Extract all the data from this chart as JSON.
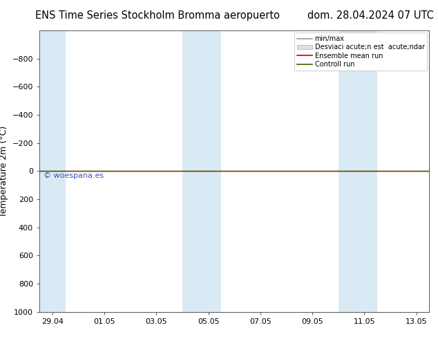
{
  "title_left": "ENS Time Series Stockholm Bromma aeropuerto",
  "title_right": "dom. 28.04.2024 07 UTC",
  "ylabel": "Temperature 2m (°C)",
  "ylim_top": -1000,
  "ylim_bottom": 1000,
  "yticks": [
    -800,
    -600,
    -400,
    -200,
    0,
    200,
    400,
    600,
    800,
    1000
  ],
  "xlim_start": 0,
  "xlim_end": 15,
  "xtick_labels": [
    "29.04",
    "01.05",
    "03.05",
    "05.05",
    "07.05",
    "09.05",
    "11.05",
    "13.05"
  ],
  "xtick_positions": [
    0.5,
    2.5,
    4.5,
    6.5,
    8.5,
    10.5,
    12.5,
    14.5
  ],
  "blue_bands": [
    {
      "start": 0.0,
      "end": 1.0
    },
    {
      "start": 5.5,
      "end": 7.0
    },
    {
      "start": 11.5,
      "end": 13.0
    }
  ],
  "blue_band_color": "#daeaf5",
  "control_run_y": 0,
  "control_run_color": "#336600",
  "ensemble_mean_color": "#cc0000",
  "std_dev_color": "#d0e4f0",
  "minmax_color": "#999999",
  "watermark": "© woespana.es",
  "watermark_color": "#3355bb",
  "bg_color": "#ffffff",
  "title_fontsize": 10.5,
  "axis_fontsize": 9,
  "tick_fontsize": 8,
  "legend_label_minmax": "min/max",
  "legend_label_std": "Desviaci acute;n est  acute;ndar",
  "legend_label_ensemble": "Ensemble mean run",
  "legend_label_control": "Controll run"
}
